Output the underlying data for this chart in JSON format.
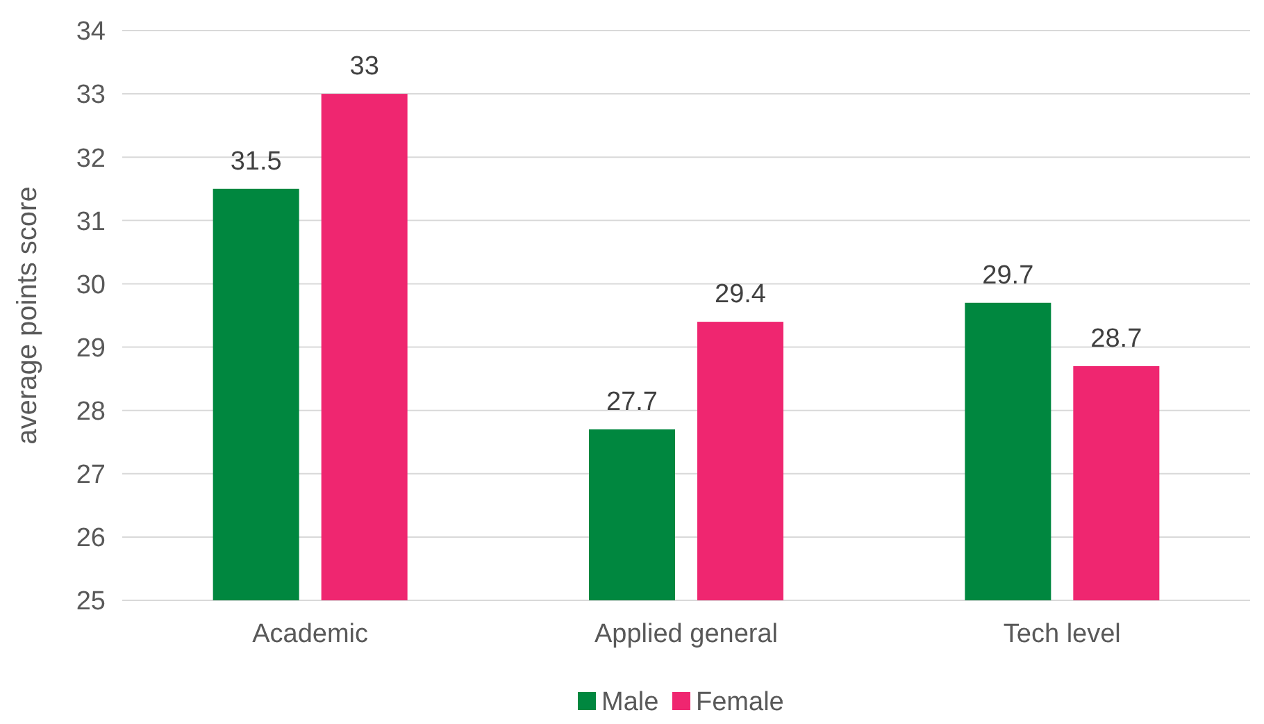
{
  "chart_data": {
    "type": "bar",
    "ylabel": "average points score",
    "categories": [
      "Academic",
      "Applied general",
      "Tech level"
    ],
    "series": [
      {
        "name": "Male",
        "color": "#00873f",
        "values": [
          31.5,
          27.7,
          29.7
        ]
      },
      {
        "name": "Female",
        "color": "#ef2670",
        "values": [
          33,
          29.4,
          28.7
        ]
      }
    ],
    "ylim": [
      25,
      34
    ],
    "yticks": [
      25,
      26,
      27,
      28,
      29,
      30,
      31,
      32,
      33,
      34
    ],
    "grid": "y",
    "legend": "bottom",
    "data_labels": true
  }
}
